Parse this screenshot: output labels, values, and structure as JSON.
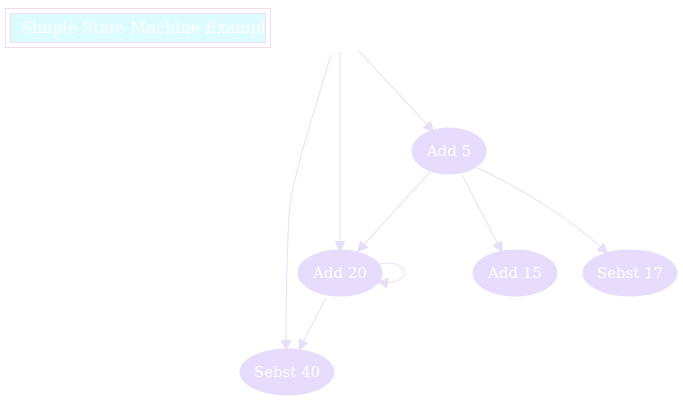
{
  "title": "Simple State Machine Example",
  "colors": {
    "node_fill": "#e8dcfc",
    "edge": "#e8def8",
    "title_background": "#dcfcff",
    "text": "#ffffff"
  },
  "nodes": [
    {
      "id": "add5",
      "label": "Add 5"
    },
    {
      "id": "add20",
      "label": "Add 20"
    },
    {
      "id": "add15",
      "label": "Add 15"
    },
    {
      "id": "sebst17",
      "label": "Sebst 17"
    },
    {
      "id": "sebst40",
      "label": "Sebst 40"
    }
  ],
  "edges": [
    {
      "from": "start",
      "to": "add5"
    },
    {
      "from": "start",
      "to": "add20"
    },
    {
      "from": "start",
      "to": "sebst40"
    },
    {
      "from": "add5",
      "to": "add20"
    },
    {
      "from": "add5",
      "to": "add15"
    },
    {
      "from": "add5",
      "to": "sebst17"
    },
    {
      "from": "add20",
      "to": "add20"
    },
    {
      "from": "add20",
      "to": "sebst40"
    }
  ]
}
